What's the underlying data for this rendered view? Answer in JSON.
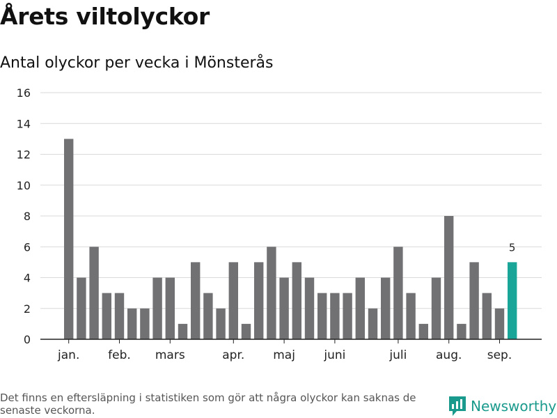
{
  "title": "Årets viltolyckor",
  "subtitle": "Antal olyckor per vecka i Mönsterås",
  "footnote": "Det finns en eftersläpning i statistiken som gör att några olyckor kan saknas de senaste veckorna.",
  "brand": {
    "name": "Newsworthy",
    "icon": "newsworthy-logo-icon"
  },
  "colors": {
    "bar": "#717073",
    "highlight": "#1aa599",
    "grid": "#d9d9d9",
    "axis": "#222222",
    "brand": "#1a9a8c"
  },
  "chart_data": {
    "type": "bar",
    "title": "Årets viltolyckor",
    "subtitle": "Antal olyckor per vecka i Mönsterås",
    "xlabel": "",
    "ylabel": "",
    "ylim": [
      0,
      16
    ],
    "yticks": [
      0,
      2,
      4,
      6,
      8,
      10,
      12,
      14,
      16
    ],
    "grid": true,
    "weeks": [
      1,
      2,
      3,
      4,
      5,
      6,
      7,
      8,
      9,
      10,
      11,
      12,
      13,
      14,
      15,
      16,
      17,
      18,
      19,
      20,
      21,
      22,
      23,
      24,
      25,
      26,
      27,
      28,
      29,
      30,
      31,
      32,
      33,
      34,
      35,
      36
    ],
    "values": [
      13,
      4,
      6,
      3,
      3,
      2,
      2,
      4,
      4,
      1,
      5,
      3,
      2,
      5,
      1,
      5,
      6,
      4,
      5,
      4,
      3,
      3,
      3,
      4,
      2,
      4,
      6,
      3,
      1,
      4,
      8,
      1,
      5,
      3,
      2,
      5
    ],
    "highlight_index": 35,
    "highlight_label": "5",
    "month_ticks": [
      {
        "label": "jan.",
        "week": 1
      },
      {
        "label": "feb.",
        "week": 5
      },
      {
        "label": "mars",
        "week": 9
      },
      {
        "label": "apr.",
        "week": 14
      },
      {
        "label": "maj",
        "week": 18
      },
      {
        "label": "juni",
        "week": 22
      },
      {
        "label": "juli",
        "week": 27
      },
      {
        "label": "aug.",
        "week": 31
      },
      {
        "label": "sep.",
        "week": 35
      }
    ]
  }
}
